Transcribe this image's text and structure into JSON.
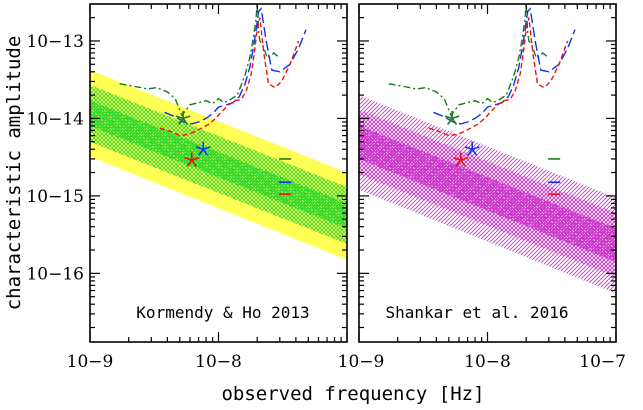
{
  "colors": {
    "yellow": "#ffff55",
    "green": "#2ed62e",
    "magenta": "#cc33cc",
    "curve_green": "#1a7a1a",
    "curve_blue": "#1133ee",
    "curve_red": "#ee1111"
  },
  "chart_data": [
    {
      "type": "line",
      "title": "Kormendy & Ho 2013",
      "xlabel": "observed frequency [Hz]",
      "ylabel": "characteristic amplitude",
      "xscale": "log",
      "yscale": "log",
      "xlim": [
        1e-09,
        1e-07
      ],
      "ylim": [
        1.3e-17,
        3e-13
      ],
      "x_ticks": [
        "10−9",
        "10−8"
      ],
      "y_ticks": [
        "10−13",
        "10−14",
        "10−15",
        "10−16"
      ],
      "bands": [
        {
          "style": "outer",
          "color": "yellow",
          "x": [
            1e-09,
            1e-07
          ],
          "lower": [
            3.2e-15,
            1.5e-16
          ],
          "upper": [
            4.2e-14,
            2e-15
          ]
        },
        {
          "style": "middle",
          "color": "green",
          "x": [
            1e-09,
            1e-07
          ],
          "lower": [
            5e-15,
            2.4e-16
          ],
          "upper": [
            2.7e-14,
            1.3e-15
          ]
        },
        {
          "style": "inner",
          "color": "green",
          "x": [
            1e-09,
            1e-07
          ],
          "lower": [
            8e-15,
            3.8e-16
          ],
          "upper": [
            1.7e-14,
            8e-16
          ]
        }
      ],
      "curves": [
        {
          "color": "curve_green",
          "dash": "dashdot",
          "x": [
            1.7e-09,
            2.2e-09,
            2.8e-09,
            3.3e-09,
            4e-09,
            4.6e-09,
            5.2e-09,
            6e-09,
            7e-09,
            8e-09,
            9e-09,
            1e-08,
            1.1e-08,
            1.2e-08,
            1.4e-08,
            1.6e-08,
            1.75e-08,
            1.85e-08,
            1.95e-08,
            2e-08,
            2.05e-08,
            2.1e-08,
            2.2e-08,
            2.4e-08,
            2.7e-08,
            3e-08
          ],
          "y": [
            2.8e-14,
            2.6e-14,
            2.4e-14,
            2.5e-14,
            2.2e-14,
            1.8e-14,
            1.1e-14,
            1.5e-14,
            1.6e-14,
            1.7e-14,
            1.55e-14,
            1.8e-14,
            1.6e-14,
            1.7e-14,
            2e-14,
            3.5e-14,
            6e-14,
            1e-13,
            1.8e-13,
            3e-13,
            1.3e-13,
            1e-13,
            9e-14,
            6e-14,
            7e-14,
            6e-14
          ]
        },
        {
          "color": "curve_blue",
          "dash": "longdash",
          "x": [
            3.8e-09,
            4.6e-09,
            5.4e-09,
            6.2e-09,
            7e-09,
            8e-09,
            9e-09,
            1e-08,
            1.15e-08,
            1.3e-08,
            1.45e-08,
            1.6e-08,
            1.75e-08,
            1.85e-08,
            1.95e-08,
            2.05e-08,
            2.15e-08,
            2.35e-08,
            2.6e-08,
            3e-08,
            3.6e-08,
            4.2e-08,
            4.8e-08
          ],
          "y": [
            1.2e-14,
            1.05e-14,
            9e-15,
            8.5e-15,
            9e-15,
            1e-14,
            1.15e-14,
            1.4e-14,
            1.5e-14,
            1.6e-14,
            1.9e-14,
            2.7e-14,
            4.5e-14,
            7.5e-14,
            1.3e-13,
            2.4e-13,
            2.6e-13,
            1e-13,
            4.2e-14,
            4e-14,
            5e-14,
            8e-14,
            1.4e-13
          ]
        },
        {
          "color": "curve_red",
          "dash": "dash",
          "x": [
            3.5e-09,
            4.2e-09,
            5e-09,
            5.8e-09,
            6.6e-09,
            7.5e-09,
            8.5e-09,
            9.5e-09,
            1.05e-08,
            1.2e-08,
            1.35e-08,
            1.5e-08,
            1.65e-08,
            1.8e-08,
            1.9e-08,
            2e-08,
            2.1e-08,
            2.25e-08,
            2.45e-08,
            2.75e-08,
            3.1e-08,
            3.6e-08,
            4.2e-08
          ],
          "y": [
            7.5e-15,
            6.8e-15,
            6e-15,
            6.2e-15,
            6.8e-15,
            7.6e-15,
            8.5e-15,
            1e-14,
            1.2e-14,
            1.5e-14,
            1.7e-14,
            1.75e-14,
            2.3e-14,
            3.8e-14,
            7e-14,
            1.4e-13,
            2e-13,
            7e-14,
            2.8e-14,
            2.5e-14,
            3e-14,
            5e-14,
            1e-13
          ]
        }
      ],
      "stars": [
        {
          "color": "curve_green",
          "x": 5.3e-09,
          "y": 1e-14
        },
        {
          "color": "curve_blue",
          "x": 7.6e-09,
          "y": 4e-15
        },
        {
          "color": "curve_red",
          "x": 6.2e-09,
          "y": 2.9e-15
        }
      ],
      "markers": [
        {
          "color": "curve_green",
          "x": 3.3e-08,
          "y": 3e-15
        },
        {
          "color": "curve_blue",
          "x": 3.3e-08,
          "y": 1.5e-15
        },
        {
          "color": "curve_red",
          "x": 3.3e-08,
          "y": 1.05e-15
        }
      ]
    },
    {
      "type": "line",
      "title": "Shankar et al. 2016",
      "xlabel": "observed frequency [Hz]",
      "xscale": "log",
      "yscale": "log",
      "xlim": [
        1e-09,
        1e-07
      ],
      "ylim": [
        1.3e-17,
        3e-13
      ],
      "x_ticks": [
        "10−9",
        "10−8",
        "10−7"
      ],
      "bands": [
        {
          "style": "outer",
          "color": "magenta",
          "x": [
            1e-09,
            1e-07
          ],
          "lower": [
            1.2e-15,
            5.5e-17
          ],
          "upper": [
            2e-14,
            9.5e-16
          ]
        },
        {
          "style": "middle",
          "color": "magenta",
          "x": [
            1e-09,
            1e-07
          ],
          "lower": [
            1.9e-15,
            9e-17
          ],
          "upper": [
            1.3e-14,
            6e-16
          ]
        },
        {
          "style": "inner",
          "color": "magenta",
          "x": [
            1e-09,
            1e-07
          ],
          "lower": [
            3e-15,
            1.4e-16
          ],
          "upper": [
            8e-15,
            3.8e-16
          ]
        }
      ],
      "curves": [
        {
          "color": "curve_green",
          "dash": "dashdot",
          "x": [
            1.7e-09,
            2.2e-09,
            2.8e-09,
            3.3e-09,
            4e-09,
            4.6e-09,
            5.2e-09,
            6e-09,
            7e-09,
            8e-09,
            9e-09,
            1e-08,
            1.1e-08,
            1.2e-08,
            1.4e-08,
            1.6e-08,
            1.75e-08,
            1.85e-08,
            1.95e-08,
            2e-08,
            2.05e-08,
            2.1e-08,
            2.2e-08,
            2.4e-08,
            2.7e-08,
            3e-08
          ],
          "y": [
            2.8e-14,
            2.6e-14,
            2.4e-14,
            2.5e-14,
            2.2e-14,
            1.8e-14,
            1.1e-14,
            1.5e-14,
            1.6e-14,
            1.7e-14,
            1.55e-14,
            1.8e-14,
            1.6e-14,
            1.7e-14,
            2e-14,
            3.5e-14,
            6e-14,
            1e-13,
            1.8e-13,
            3e-13,
            1.3e-13,
            1e-13,
            9e-14,
            6e-14,
            7e-14,
            6e-14
          ]
        },
        {
          "color": "curve_blue",
          "dash": "longdash",
          "x": [
            3.8e-09,
            4.6e-09,
            5.4e-09,
            6.2e-09,
            7e-09,
            8e-09,
            9e-09,
            1e-08,
            1.15e-08,
            1.3e-08,
            1.45e-08,
            1.6e-08,
            1.75e-08,
            1.85e-08,
            1.95e-08,
            2.05e-08,
            2.15e-08,
            2.35e-08,
            2.6e-08,
            3e-08,
            3.6e-08,
            4.2e-08,
            4.8e-08
          ],
          "y": [
            1.2e-14,
            1.05e-14,
            9e-15,
            8.5e-15,
            9e-15,
            1e-14,
            1.15e-14,
            1.4e-14,
            1.5e-14,
            1.6e-14,
            1.9e-14,
            2.7e-14,
            4.5e-14,
            7.5e-14,
            1.3e-13,
            2.4e-13,
            2.6e-13,
            1e-13,
            4.2e-14,
            4e-14,
            5e-14,
            8e-14,
            1.4e-13
          ]
        },
        {
          "color": "curve_red",
          "dash": "dash",
          "x": [
            3.5e-09,
            4.2e-09,
            5e-09,
            5.8e-09,
            6.6e-09,
            7.5e-09,
            8.5e-09,
            9.5e-09,
            1.05e-08,
            1.2e-08,
            1.35e-08,
            1.5e-08,
            1.65e-08,
            1.8e-08,
            1.9e-08,
            2e-08,
            2.1e-08,
            2.25e-08,
            2.45e-08,
            2.75e-08,
            3.1e-08,
            3.6e-08,
            4.2e-08
          ],
          "y": [
            7.5e-15,
            6.8e-15,
            6e-15,
            6.2e-15,
            6.8e-15,
            7.6e-15,
            8.5e-15,
            1e-14,
            1.2e-14,
            1.5e-14,
            1.7e-14,
            1.75e-14,
            2.3e-14,
            3.8e-14,
            7e-14,
            1.4e-13,
            2e-13,
            7e-14,
            2.8e-14,
            2.5e-14,
            3e-14,
            5e-14,
            1e-13
          ]
        }
      ],
      "stars": [
        {
          "color": "curve_green",
          "x": 5.3e-09,
          "y": 1e-14
        },
        {
          "color": "curve_blue",
          "x": 7.6e-09,
          "y": 4e-15
        },
        {
          "color": "curve_red",
          "x": 6.2e-09,
          "y": 2.9e-15
        }
      ],
      "markers": [
        {
          "color": "curve_green",
          "x": 3.3e-08,
          "y": 3e-15
        },
        {
          "color": "curve_blue",
          "x": 3.3e-08,
          "y": 1.5e-15
        },
        {
          "color": "curve_red",
          "x": 3.3e-08,
          "y": 1.05e-15
        }
      ]
    }
  ]
}
